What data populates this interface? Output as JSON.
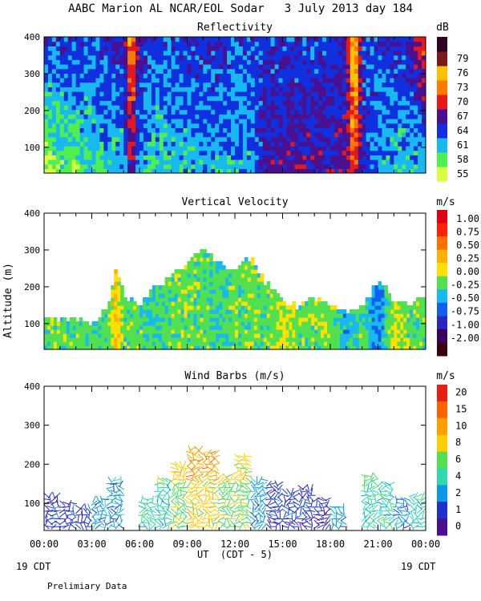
{
  "header": {
    "title": "AABC Marion AL NCAR/EOL Sodar   3 July 2013 day 184"
  },
  "footer": {
    "xlabel": "UT  (CDT - 5)",
    "left_date": "19 CDT",
    "right_date": "19 CDT",
    "note": "Prelimiary Data"
  },
  "colors": {
    "reflectivity": [
      "#d8ff40",
      "#50ef50",
      "#18b8f0",
      "#1030e0",
      "#4a1090",
      "#e81818",
      "#ff7800",
      "#ffc000",
      "#7a1a1a",
      "#300020"
    ],
    "velocity": [
      "#3a0010",
      "#3a0060",
      "#2828c0",
      "#1060f0",
      "#18b8f0",
      "#50e050",
      "#ffe000",
      "#ffb000",
      "#ff7000",
      "#ff2000",
      "#e00010"
    ],
    "wind": [
      "#4a1090",
      "#2030d0",
      "#1098e8",
      "#30d8b0",
      "#50e050",
      "#ffd000",
      "#ffa000",
      "#ff6000",
      "#e82010"
    ]
  },
  "chart_data": [
    {
      "type": "heatmap",
      "title": "Reflectivity",
      "unit_label": "dB",
      "ylabel": "",
      "xlabel": "UT  (CDT - 5)",
      "xticks": [
        "00:00",
        "03:00",
        "06:00",
        "09:00",
        "12:00",
        "15:00",
        "18:00",
        "21:00",
        "00:00"
      ],
      "xlim_hours": [
        0,
        24
      ],
      "yticks": [
        "100",
        "200",
        "300",
        "400"
      ],
      "ylim": [
        30,
        400
      ],
      "colorbar": {
        "labels": [
          "55",
          "58",
          "61",
          "64",
          "67",
          "70",
          "73",
          "76",
          "79"
        ]
      },
      "columns": [
        {
          "h": 0,
          "sfc": 55,
          "top": 64
        },
        {
          "h": 1,
          "sfc": 58,
          "top": 64
        },
        {
          "h": 2,
          "sfc": 58,
          "top": 64
        },
        {
          "h": 3,
          "sfc": 59,
          "top": 64
        },
        {
          "h": 4,
          "sfc": 60,
          "top": 65
        },
        {
          "h": 5,
          "sfc": 60,
          "top": 66
        },
        {
          "h": 5.5,
          "sfc": 69,
          "top": 75
        },
        {
          "h": 6,
          "sfc": 60,
          "top": 66
        },
        {
          "h": 7,
          "sfc": 60,
          "top": 64
        },
        {
          "h": 8,
          "sfc": 60,
          "top": 64
        },
        {
          "h": 9,
          "sfc": 61,
          "top": 64
        },
        {
          "h": 10,
          "sfc": 61,
          "top": 65
        },
        {
          "h": 11,
          "sfc": 61,
          "top": 65
        },
        {
          "h": 12,
          "sfc": 61,
          "top": 64
        },
        {
          "h": 13,
          "sfc": 61,
          "top": 64
        },
        {
          "h": 14,
          "sfc": 66,
          "top": 64
        },
        {
          "h": 15,
          "sfc": 67,
          "top": 64
        },
        {
          "h": 16,
          "sfc": 67,
          "top": 64
        },
        {
          "h": 17,
          "sfc": 67,
          "top": 64
        },
        {
          "h": 18,
          "sfc": 67,
          "top": 64
        },
        {
          "h": 19,
          "sfc": 67,
          "top": 65
        },
        {
          "h": 19.5,
          "sfc": 72,
          "top": 79
        },
        {
          "h": 20,
          "sfc": 65,
          "top": 64
        },
        {
          "h": 21,
          "sfc": 62,
          "top": 64
        },
        {
          "h": 22,
          "sfc": 60,
          "top": 65
        },
        {
          "h": 23,
          "sfc": 60,
          "top": 66
        },
        {
          "h": 24,
          "sfc": 60,
          "top": 72
        }
      ]
    },
    {
      "type": "area",
      "title": "Vertical Velocity",
      "unit_label": "m/s",
      "ylabel": "Altitude (m)",
      "xlabel": "UT  (CDT - 5)",
      "xticks": [
        "00:00",
        "03:00",
        "06:00",
        "09:00",
        "12:00",
        "15:00",
        "18:00",
        "21:00",
        "00:00"
      ],
      "yticks": [
        "100",
        "200",
        "300",
        "400"
      ],
      "ylim": [
        30,
        400
      ],
      "colorbar": {
        "labels": [
          "1.00",
          "0.75",
          "0.50",
          "0.25",
          "0.00",
          "-0.25",
          "-0.50",
          "-0.75",
          "-1.00",
          "-2.00"
        ]
      },
      "series": [
        {
          "h": 0,
          "top": 120,
          "w": 0.0
        },
        {
          "h": 1,
          "top": 110,
          "w": 0.0
        },
        {
          "h": 2,
          "top": 110,
          "w": 0.0
        },
        {
          "h": 3,
          "top": 100,
          "w": -0.1
        },
        {
          "h": 4,
          "top": 130,
          "w": 0.0
        },
        {
          "h": 4.5,
          "top": 250,
          "w": 0.4
        },
        {
          "h": 5,
          "top": 170,
          "w": 0.0
        },
        {
          "h": 6,
          "top": 150,
          "w": 0.0
        },
        {
          "h": 7,
          "top": 190,
          "w": -0.1
        },
        {
          "h": 8,
          "top": 220,
          "w": 0.0
        },
        {
          "h": 9,
          "top": 260,
          "w": 0.0
        },
        {
          "h": 10,
          "top": 300,
          "w": 0.0
        },
        {
          "h": 11,
          "top": 260,
          "w": -0.1
        },
        {
          "h": 12,
          "top": 240,
          "w": 0.0
        },
        {
          "h": 13,
          "top": 280,
          "w": 0.0
        },
        {
          "h": 14,
          "top": 200,
          "w": 0.0
        },
        {
          "h": 15,
          "top": 160,
          "w": 0.2
        },
        {
          "h": 16,
          "top": 140,
          "w": 0.0
        },
        {
          "h": 17,
          "top": 170,
          "w": 0.0
        },
        {
          "h": 18,
          "top": 140,
          "w": 0.1
        },
        {
          "h": 19,
          "top": 130,
          "w": -0.3
        },
        {
          "h": 20,
          "top": 140,
          "w": 0.0
        },
        {
          "h": 21,
          "top": 210,
          "w": -0.5
        },
        {
          "h": 22,
          "top": 160,
          "w": 0.2
        },
        {
          "h": 23,
          "top": 150,
          "w": 0.0
        },
        {
          "h": 24,
          "top": 170,
          "w": 0.0
        }
      ]
    },
    {
      "type": "scatter",
      "title": "Wind Barbs (m/s)",
      "unit_label": "m/s",
      "ylabel": "",
      "xlabel": "UT  (CDT - 5)",
      "xticks": [
        "00:00",
        "03:00",
        "06:00",
        "09:00",
        "12:00",
        "15:00",
        "18:00",
        "21:00",
        "00:00"
      ],
      "yticks": [
        "100",
        "200",
        "300",
        "400"
      ],
      "ylim": [
        30,
        400
      ],
      "colorbar": {
        "labels": [
          "20",
          "15",
          "10",
          "8",
          "6",
          "4",
          "2",
          "1",
          "0"
        ]
      },
      "columns": [
        {
          "h": 0.5,
          "top": 120,
          "speed": 1
        },
        {
          "h": 1.5,
          "top": 100,
          "speed": 1
        },
        {
          "h": 2.5,
          "top": 90,
          "speed": 1
        },
        {
          "h": 3.5,
          "top": 110,
          "speed": 2
        },
        {
          "h": 4.5,
          "top": 160,
          "speed": 2
        },
        {
          "h": 6.5,
          "top": 110,
          "speed": 3
        },
        {
          "h": 7.5,
          "top": 160,
          "speed": 3
        },
        {
          "h": 8.5,
          "top": 200,
          "speed": 4
        },
        {
          "h": 9.5,
          "top": 240,
          "speed": 5
        },
        {
          "h": 10.5,
          "top": 230,
          "speed": 5
        },
        {
          "h": 11.5,
          "top": 170,
          "speed": 4
        },
        {
          "h": 12.5,
          "top": 220,
          "speed": 4
        },
        {
          "h": 13.5,
          "top": 160,
          "speed": 2
        },
        {
          "h": 14.5,
          "top": 150,
          "speed": 1
        },
        {
          "h": 15.5,
          "top": 130,
          "speed": 1
        },
        {
          "h": 16.5,
          "top": 140,
          "speed": 1
        },
        {
          "h": 17.5,
          "top": 110,
          "speed": 1
        },
        {
          "h": 18.5,
          "top": 90,
          "speed": 2
        },
        {
          "h": 20.5,
          "top": 170,
          "speed": 3
        },
        {
          "h": 21.5,
          "top": 150,
          "speed": 3
        },
        {
          "h": 22.5,
          "top": 110,
          "speed": 2
        },
        {
          "h": 23.5,
          "top": 120,
          "speed": 3
        }
      ]
    }
  ]
}
